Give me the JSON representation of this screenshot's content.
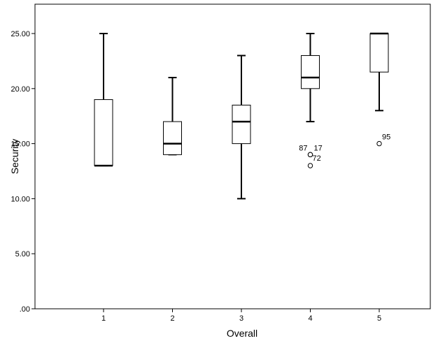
{
  "chart_data": {
    "type": "boxplot",
    "xlabel": "Overall",
    "ylabel": "Security",
    "ylim": [
      0,
      27.5
    ],
    "y_ticks": [
      0,
      5,
      10,
      15,
      20,
      25
    ],
    "y_tick_labels": [
      ".00",
      "5.00",
      "10.00",
      "15.00",
      "20.00",
      "25.00"
    ],
    "categories": [
      "1",
      "2",
      "3",
      "4",
      "5"
    ],
    "boxes": [
      {
        "category": "1",
        "whisker_low": 13,
        "q1": 13,
        "median": 13,
        "q3": 19,
        "whisker_high": 25,
        "outliers": []
      },
      {
        "category": "2",
        "whisker_low": 14,
        "q1": 14,
        "median": 15,
        "q3": 17,
        "whisker_high": 21,
        "outliers": []
      },
      {
        "category": "3",
        "whisker_low": 10,
        "q1": 15,
        "median": 17,
        "q3": 18.5,
        "whisker_high": 23,
        "outliers": []
      },
      {
        "category": "4",
        "whisker_low": 17,
        "q1": 20,
        "median": 21,
        "q3": 23,
        "whisker_high": 25,
        "outliers": [
          {
            "value": 14,
            "label": "87",
            "label_side": "left"
          },
          {
            "value": 14,
            "label": "17",
            "label_side": "right"
          },
          {
            "value": 13,
            "label": "72",
            "label_side": "right-up"
          }
        ]
      },
      {
        "category": "5",
        "whisker_low": 18,
        "q1": 21.5,
        "median": 25,
        "q3": 25,
        "whisker_high": 25,
        "outliers": [
          {
            "value": 15,
            "label": "95",
            "label_side": "right-up"
          }
        ]
      }
    ],
    "grid": false,
    "legend": "none"
  }
}
